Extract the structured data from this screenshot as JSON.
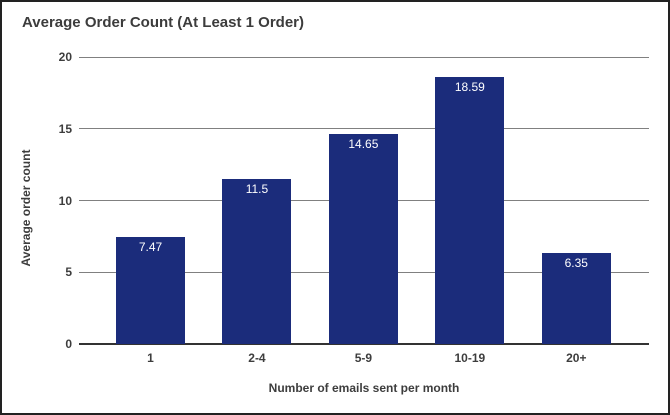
{
  "chart_data": {
    "type": "bar",
    "title": "Average Order Count (At Least 1 Order)",
    "xlabel": "Number of emails sent per month",
    "ylabel": "Average order count",
    "categories": [
      "1",
      "2-4",
      "5-9",
      "10-19",
      "20+"
    ],
    "values": [
      7.47,
      11.5,
      14.65,
      18.59,
      6.35
    ],
    "value_labels": [
      "7.47",
      "11.5",
      "14.65",
      "18.59",
      "6.35"
    ],
    "ylim": [
      0,
      20
    ],
    "yticks": [
      0,
      5,
      10,
      15,
      20
    ],
    "grid": true,
    "legend": "none",
    "colors": {
      "bar": "#1b2c7b",
      "bar_value_label": "#ffffff",
      "gridline": "#808080",
      "baseline": "#333333",
      "axis_text": "#3d3d3d",
      "title_text": "#3c3c3c",
      "background": "#ffffff",
      "frame_border": "#222222"
    }
  }
}
